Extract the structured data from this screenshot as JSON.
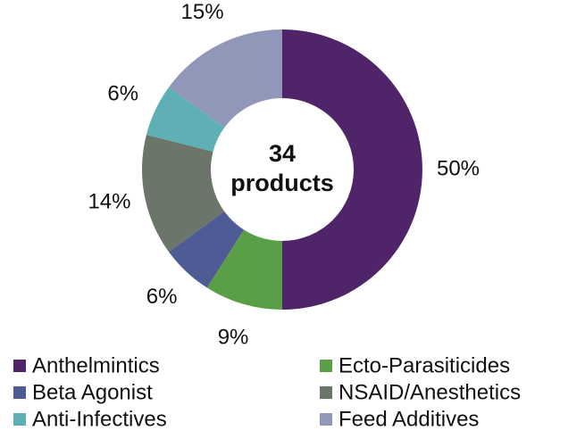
{
  "chart_data": {
    "type": "donut",
    "center_text": [
      "34",
      "products"
    ],
    "categories": [
      "Anthelmintics",
      "Ecto-Parasiticides",
      "Beta Agonist",
      "NSAID/Anesthetics",
      "Anti-Infectives",
      "Feed Additives"
    ],
    "values": [
      50,
      9,
      6,
      14,
      6,
      15
    ],
    "value_labels": [
      "50%",
      "9%",
      "6%",
      "14%",
      "6%",
      "15%"
    ],
    "colors": [
      "#4f2468",
      "#5a9e48",
      "#4f5b94",
      "#6b7569",
      "#5fb0b4",
      "#9197b8"
    ],
    "legend": "bottom"
  }
}
